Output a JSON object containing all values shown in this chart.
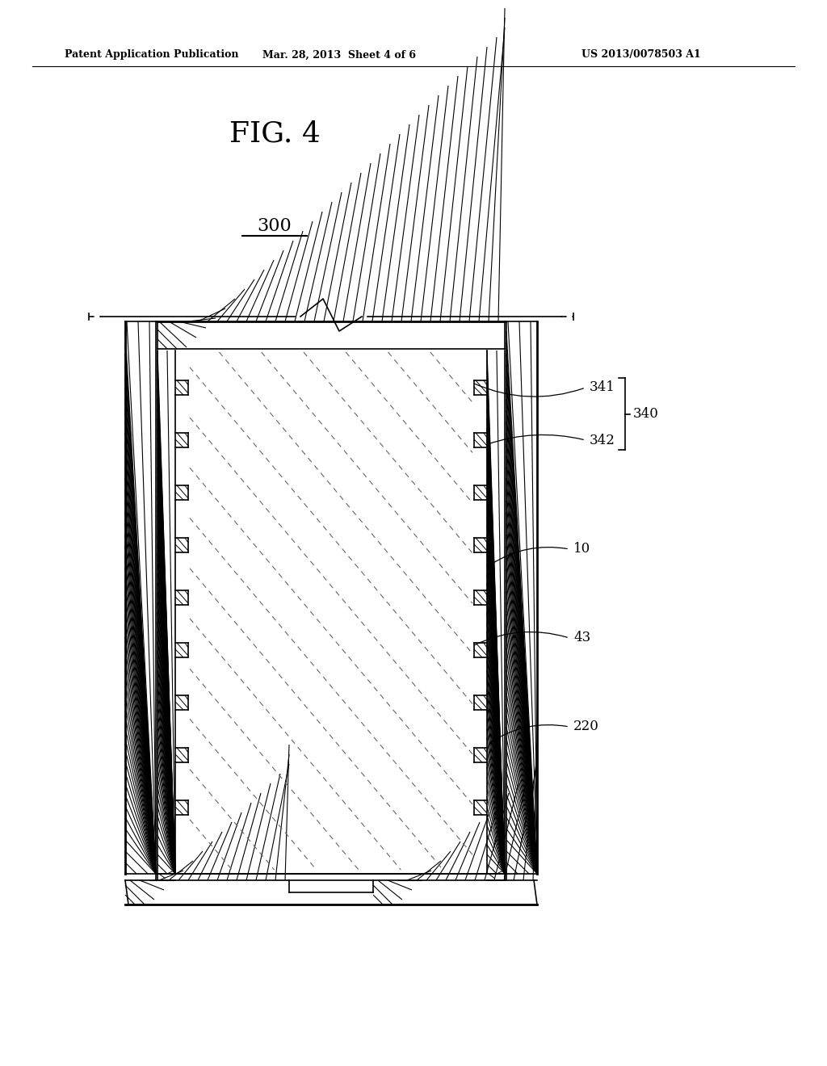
{
  "bg_color": "#ffffff",
  "text_color": "#000000",
  "header_left": "Patent Application Publication",
  "header_center": "Mar. 28, 2013  Sheet 4 of 6",
  "header_right": "US 2013/0078503 A1",
  "fig_label": "FIG. 4",
  "ref_300": "300",
  "ref_341": "341",
  "ref_342": "342",
  "ref_340": "340",
  "ref_10": "10",
  "ref_43": "43",
  "ref_220": "220",
  "line_width": 1.2,
  "thick_line": 2.0
}
